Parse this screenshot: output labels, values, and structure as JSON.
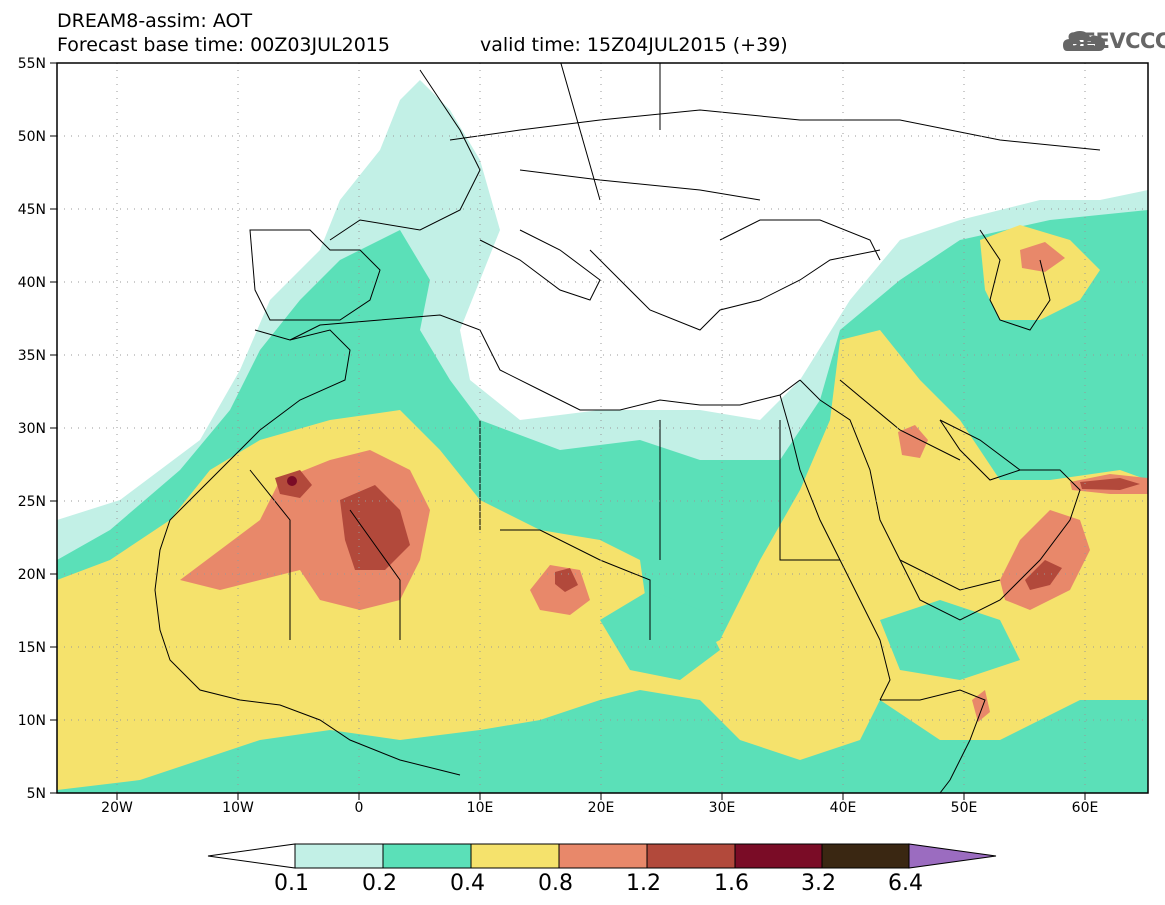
{
  "header": {
    "model": "DREAM8-assim: AOT",
    "base_time": "Forecast base time: 00Z03JUL2015",
    "valid_time": "valid time: 15Z04JUL2015 (+39)"
  },
  "logo": {
    "text": "SEEVCCC",
    "icon": "cloud-icon"
  },
  "map": {
    "lon_ticks": [
      "20W",
      "10W",
      "0",
      "10E",
      "20E",
      "30E",
      "40E",
      "50E",
      "60E"
    ],
    "lat_ticks": [
      "55N",
      "50N",
      "45N",
      "40N",
      "35N",
      "30N",
      "25N",
      "20N",
      "15N",
      "10N",
      "5N"
    ]
  },
  "colorbar": {
    "labels": [
      "0.1",
      "0.2",
      "0.4",
      "0.8",
      "1.2",
      "1.6",
      "3.2",
      "6.4"
    ],
    "colors": [
      "#c2f0e6",
      "#5be0b8",
      "#f5e26c",
      "#e8886a",
      "#b2493b",
      "#7a0c26",
      "#3a2712",
      "#9b6cc0"
    ]
  }
}
